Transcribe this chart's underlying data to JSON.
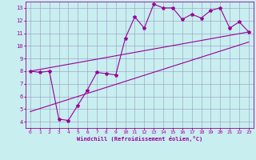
{
  "xlabel": "Windchill (Refroidissement éolien,°C)",
  "ylabel": "",
  "bg_color": "#c8eef0",
  "line_color": "#990099",
  "grid_color": "#9999bb",
  "xlim": [
    -0.5,
    23.5
  ],
  "ylim": [
    3.5,
    13.5
  ],
  "xticks": [
    0,
    1,
    2,
    3,
    4,
    5,
    6,
    7,
    8,
    9,
    10,
    11,
    12,
    13,
    14,
    15,
    16,
    17,
    18,
    19,
    20,
    21,
    22,
    23
  ],
  "yticks": [
    4,
    5,
    6,
    7,
    8,
    9,
    10,
    11,
    12,
    13
  ],
  "data_x": [
    0,
    1,
    2,
    3,
    4,
    5,
    6,
    7,
    8,
    9,
    10,
    11,
    12,
    13,
    14,
    15,
    16,
    17,
    18,
    19,
    20,
    21,
    22,
    23
  ],
  "data_y": [
    8.0,
    7.9,
    8.0,
    4.2,
    4.1,
    5.3,
    6.5,
    7.9,
    7.8,
    7.7,
    10.6,
    12.3,
    11.4,
    13.3,
    13.0,
    13.0,
    12.1,
    12.5,
    12.2,
    12.8,
    13.0,
    11.4,
    11.9,
    11.1
  ],
  "upper_line_x": [
    0,
    23
  ],
  "upper_line_y": [
    8.0,
    11.1
  ],
  "lower_line_x": [
    0,
    23
  ],
  "lower_line_y": [
    4.8,
    10.3
  ],
  "marker": "*",
  "markersize": 3,
  "linewidth": 0.8
}
